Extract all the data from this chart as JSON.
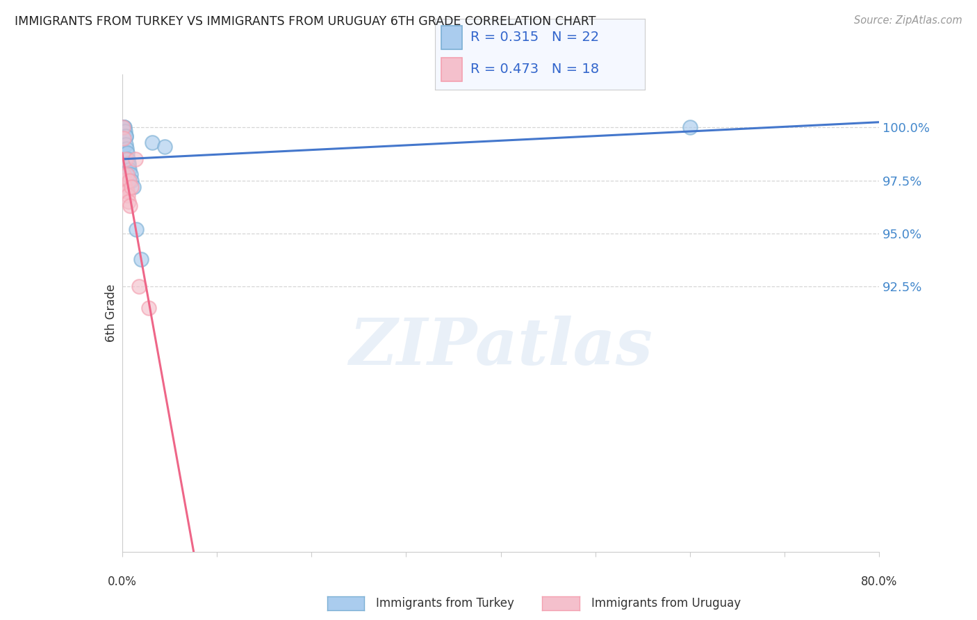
{
  "title": "IMMIGRANTS FROM TURKEY VS IMMIGRANTS FROM URUGUAY 6TH GRADE CORRELATION CHART",
  "source": "Source: ZipAtlas.com",
  "ylabel": "6th Grade",
  "turkey_color": "#7bafd4",
  "turkey_face_color": "#aaccee",
  "uruguay_color": "#f4a0b0",
  "uruguay_face_color": "#f4c0cc",
  "turkey_line_color": "#4477cc",
  "uruguay_line_color": "#ee6688",
  "turkey_R": 0.315,
  "turkey_N": 22,
  "uruguay_R": 0.473,
  "uruguay_N": 18,
  "turkey_x": [
    0.15,
    0.15,
    0.2,
    0.25,
    0.3,
    0.35,
    0.35,
    0.4,
    0.45,
    0.5,
    0.6,
    0.65,
    0.7,
    0.75,
    0.9,
    1.0,
    1.2,
    1.5,
    2.0,
    3.2,
    4.5,
    60.0
  ],
  "turkey_y": [
    100.0,
    100.0,
    100.0,
    100.0,
    99.8,
    99.6,
    99.6,
    99.2,
    99.0,
    98.8,
    98.5,
    98.3,
    98.2,
    98.0,
    97.8,
    97.5,
    97.2,
    95.2,
    93.8,
    99.3,
    99.1,
    100.0
  ],
  "uruguay_x": [
    0.1,
    0.15,
    0.2,
    0.2,
    0.25,
    0.3,
    0.35,
    0.4,
    0.5,
    0.5,
    0.6,
    0.7,
    0.75,
    0.8,
    1.0,
    1.4,
    1.8,
    2.8
  ],
  "uruguay_y": [
    100.0,
    97.8,
    99.5,
    97.5,
    97.3,
    97.2,
    97.0,
    98.5,
    97.8,
    97.0,
    96.8,
    96.5,
    97.5,
    96.3,
    97.2,
    98.5,
    92.5,
    91.5
  ],
  "xlim": [
    0.0,
    80.0
  ],
  "ylim": [
    80.0,
    102.5
  ],
  "y_ticks": [
    92.5,
    95.0,
    97.5,
    100.0
  ],
  "grid_color": "#cccccc",
  "background_color": "#ffffff",
  "watermark_text": "ZIPatlas",
  "legend_bg": "#f5f8ff",
  "legend_border": "#cccccc"
}
